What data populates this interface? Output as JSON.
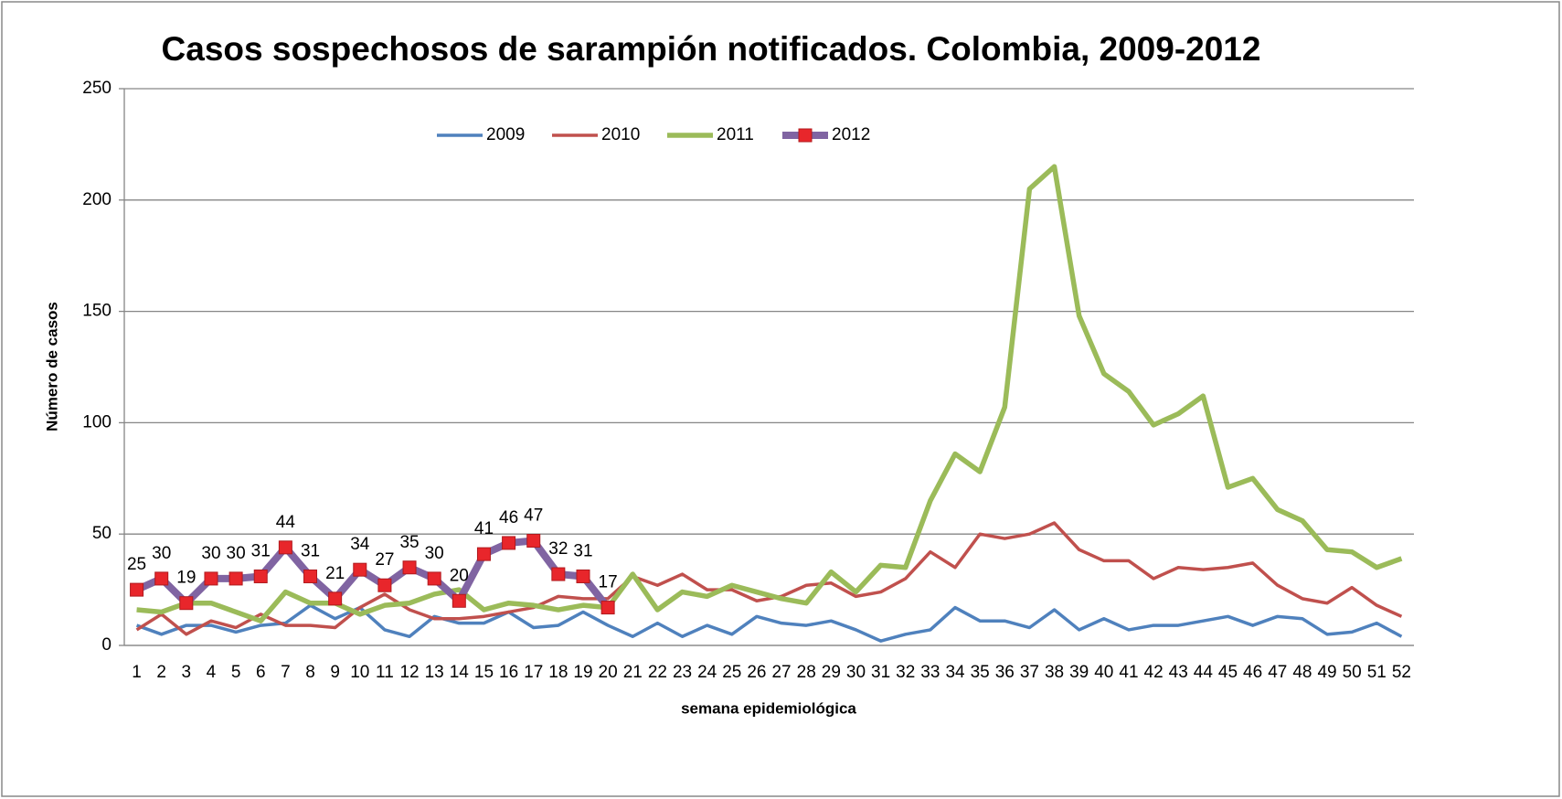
{
  "chart_data": {
    "type": "line",
    "title": "Casos sospechosos de sarampión notificados. Colombia, 2009-2012",
    "x_label": "semana epidemiológica",
    "y_label": "Número de casos",
    "categories": [
      "1",
      "2",
      "3",
      "4",
      "5",
      "6",
      "7",
      "8",
      "9",
      "10",
      "11",
      "12",
      "13",
      "14",
      "15",
      "16",
      "17",
      "18",
      "19",
      "20",
      "21",
      "22",
      "23",
      "24",
      "25",
      "26",
      "27",
      "28",
      "29",
      "30",
      "31",
      "32",
      "33",
      "34",
      "35",
      "36",
      "37",
      "38",
      "39",
      "40",
      "41",
      "42",
      "43",
      "44",
      "45",
      "46",
      "47",
      "48",
      "49",
      "50",
      "51",
      "52"
    ],
    "series": [
      {
        "name": "2009",
        "color": "#4f81bd",
        "values": [
          9,
          5,
          9,
          9,
          6,
          9,
          10,
          18,
          12,
          17,
          7,
          4,
          13,
          10,
          10,
          15,
          8,
          9,
          15,
          9,
          4,
          10,
          4,
          9,
          5,
          13,
          10,
          9,
          11,
          7,
          2,
          5,
          7,
          17,
          11,
          11,
          8,
          16,
          7,
          12,
          7,
          9,
          9,
          11,
          13,
          9,
          13,
          12,
          5,
          6,
          10,
          4
        ]
      },
      {
        "name": "2010",
        "color": "#c0504d",
        "values": [
          7,
          14,
          5,
          11,
          8,
          14,
          9,
          9,
          8,
          17,
          23,
          16,
          12,
          12,
          13,
          15,
          17,
          22,
          21,
          21,
          31,
          27,
          32,
          25,
          25,
          20,
          22,
          27,
          28,
          22,
          24,
          30,
          42,
          35,
          50,
          48,
          50,
          55,
          43,
          38,
          38,
          30,
          35,
          34,
          35,
          37,
          27,
          21,
          19,
          26,
          18,
          13
        ]
      },
      {
        "name": "2011",
        "color": "#9bbb59",
        "values": [
          16,
          15,
          19,
          19,
          15,
          11,
          24,
          19,
          19,
          14,
          18,
          19,
          23,
          25,
          16,
          19,
          18,
          16,
          18,
          17,
          32,
          16,
          24,
          22,
          27,
          24,
          21,
          19,
          33,
          24,
          36,
          35,
          65,
          86,
          78,
          107,
          205,
          215,
          148,
          122,
          114,
          99,
          104,
          112,
          71,
          75,
          61,
          56,
          43,
          42,
          35,
          39
        ]
      },
      {
        "name": "2012",
        "color": "#8064a2",
        "marker_color": "#e8262b",
        "data_labels": true,
        "values": [
          25,
          30,
          19,
          30,
          30,
          31,
          44,
          31,
          21,
          34,
          27,
          35,
          30,
          20,
          41,
          46,
          47,
          32,
          31,
          17,
          null,
          null,
          null,
          null,
          null,
          null,
          null,
          null,
          null,
          null,
          null,
          null,
          null,
          null,
          null,
          null,
          null,
          null,
          null,
          null,
          null,
          null,
          null,
          null,
          null,
          null,
          null,
          null,
          null,
          null,
          null,
          null
        ]
      }
    ],
    "ylim": [
      0,
      250
    ],
    "yticks": [
      0,
      50,
      100,
      150,
      200,
      250
    ],
    "grid": true,
    "legend": "top"
  }
}
